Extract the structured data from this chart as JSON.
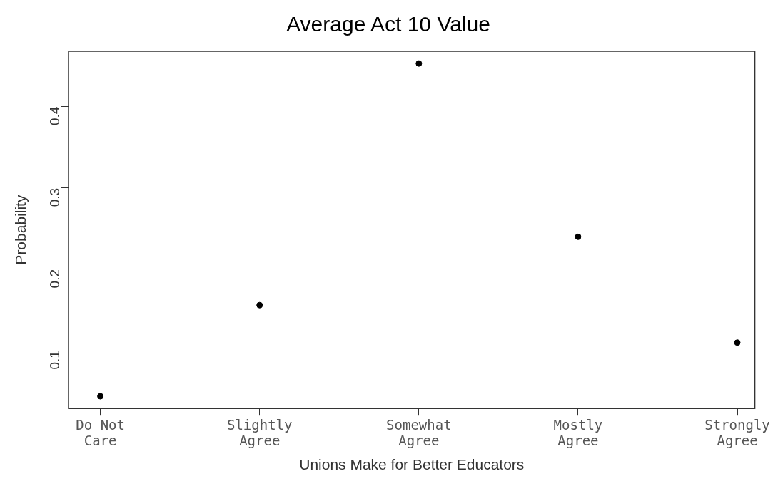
{
  "chart_data": {
    "type": "scatter",
    "title": "Average Act 10 Value",
    "xlabel": "Unions Make for Better Educators",
    "ylabel": "Probability",
    "categories": [
      "Do Not Care",
      "Slightly Agree",
      "Somewhat Agree",
      "Mostly Agree",
      "Strongly Agree"
    ],
    "values": [
      0.044,
      0.156,
      0.453,
      0.24,
      0.11
    ],
    "color": "#000000",
    "ylim": [
      0.029,
      0.468
    ],
    "yticks": [
      0.1,
      0.2,
      0.3,
      0.4
    ],
    "grid": false,
    "legend": false,
    "marker": "circle"
  }
}
